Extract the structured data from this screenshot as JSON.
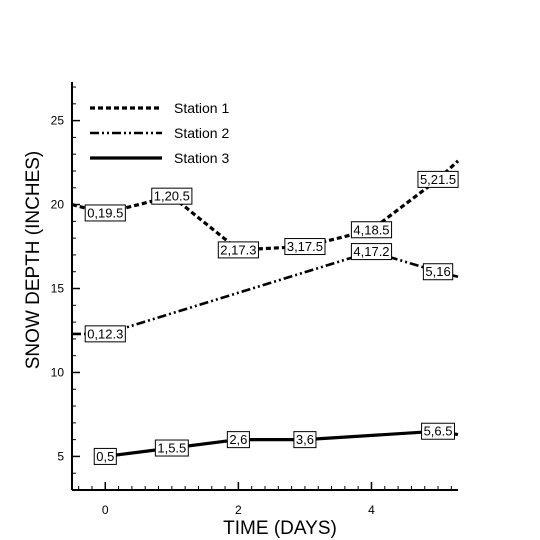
{
  "chart_data": {
    "type": "line",
    "xlabel": "TIME (DAYS)",
    "ylabel": "SNOW DEPTH (INCHES)",
    "xlim": [
      -0.5,
      5.3
    ],
    "ylim": [
      3,
      27.3
    ],
    "xticks": [
      0,
      2,
      4
    ],
    "yticks": [
      5,
      10,
      15,
      20,
      25
    ],
    "grid": false,
    "legend_position": "top-left",
    "series": [
      {
        "name": "Station 1",
        "style": "dashed",
        "points": [
          {
            "x": -0.5,
            "y": 20.0
          },
          {
            "x": 0,
            "y": 19.5,
            "label": "0,19.5"
          },
          {
            "x": 1,
            "y": 20.5,
            "label": "1,20.5"
          },
          {
            "x": 2,
            "y": 17.3,
            "label": "2,17.3"
          },
          {
            "x": 3,
            "y": 17.5,
            "label": "3,17.5"
          },
          {
            "x": 4,
            "y": 18.5,
            "label": "4,18.5"
          },
          {
            "x": 5,
            "y": 21.5,
            "label": "5,21.5"
          },
          {
            "x": 5.3,
            "y": 22.6
          }
        ]
      },
      {
        "name": "Station 2",
        "style": "dash-dot-dot",
        "points": [
          {
            "x": -0.5,
            "y": 12.3
          },
          {
            "x": 0,
            "y": 12.3,
            "label": "0,12.3"
          },
          {
            "x": 4,
            "y": 17.2,
            "label": "4,17.2"
          },
          {
            "x": 5,
            "y": 16,
            "label": "5,16"
          },
          {
            "x": 5.3,
            "y": 15.7
          }
        ]
      },
      {
        "name": "Station 3",
        "style": "solid",
        "points": [
          {
            "x": 0,
            "y": 5,
            "label": "0,5"
          },
          {
            "x": 1,
            "y": 5.5,
            "label": "1,5.5"
          },
          {
            "x": 2,
            "y": 6,
            "label": "2,6"
          },
          {
            "x": 3,
            "y": 6,
            "label": "3,6"
          },
          {
            "x": 5,
            "y": 6.5,
            "label": "5,6.5"
          },
          {
            "x": 5.3,
            "y": 6.3
          }
        ]
      }
    ]
  }
}
